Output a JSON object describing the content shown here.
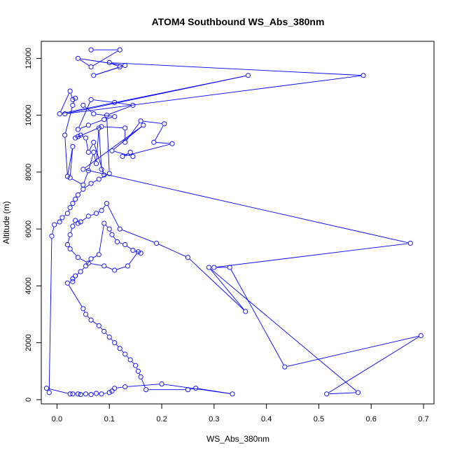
{
  "chart_data": {
    "type": "line",
    "title": "ATOM4 Southbound WS_Abs_380nm",
    "xlabel": "WS_Abs_380nm",
    "ylabel": "Altitude (m)",
    "xlim": [
      -0.03,
      0.72
    ],
    "ylim": [
      -150,
      12600
    ],
    "xticks": [
      "0.0",
      "0.1",
      "0.2",
      "0.3",
      "0.4",
      "0.5",
      "0.6",
      "0.7"
    ],
    "yticks": [
      "0",
      "2000",
      "4000",
      "6000",
      "8000",
      "10000",
      "12000"
    ],
    "xtick_values": [
      0,
      0.1,
      0.2,
      0.3,
      0.4,
      0.5,
      0.6,
      0.7
    ],
    "ytick_values": [
      0,
      2000,
      4000,
      6000,
      8000,
      10000,
      12000
    ],
    "grid": false,
    "legend": "none",
    "series": [
      {
        "color": "#0000ff",
        "marker": "open-circle",
        "x": [
          0.065,
          0.12,
          0.065,
          0.04,
          0.13,
          0.07,
          0.12,
          0.1,
          0.585,
          0.015,
          0.365,
          0.005,
          0.025,
          0.03,
          0.035,
          0.03,
          0.015,
          0.02,
          0.03,
          0.025,
          0.05,
          0.06,
          0.07,
          0.075,
          0.08,
          0.085,
          0.09,
          0.07,
          0.06,
          0.055,
          0.045,
          0.04,
          0.035,
          0.085,
          0.13,
          0.13,
          0.16,
          0.205,
          0.185,
          0.22,
          0.125,
          0.14,
          0.145,
          0.105,
          0.165,
          0.05,
          0.675,
          0.3,
          0.33,
          0.435,
          0.695,
          0.515,
          0.575,
          0.29,
          0.36,
          0.25,
          0.19,
          0.12,
          0.095,
          0.085,
          0.075,
          0.06,
          0.045,
          0.04,
          0.035,
          0.03,
          0.025,
          0.02,
          0.025,
          0.04,
          0.06,
          0.09,
          0.11,
          0.135,
          0.155,
          0.16,
          0.145,
          0.13,
          0.115,
          0.105,
          0.1,
          0.09,
          0.08,
          0.065,
          0.055,
          0.045,
          0.035,
          0.03,
          0.03,
          0.02,
          0.05,
          0.055,
          0.065,
          0.08,
          0.09,
          0.1,
          0.11,
          0.12,
          0.13,
          0.14,
          0.15,
          0.155,
          0.16,
          0.17,
          0.25,
          0.265,
          0.335,
          0.2,
          0.13,
          0.11,
          0.105,
          0.1,
          0.085,
          0.075,
          0.065,
          0.055,
          0.045,
          0.04,
          0.03,
          0.025,
          -0.02,
          -0.015,
          -0.01,
          -0.005,
          0.005,
          0.01,
          0.02,
          0.025,
          0.03,
          0.035,
          0.04,
          0.05,
          0.065,
          0.08,
          0.1,
          0.095,
          0.145,
          0.11,
          0.065,
          0.04,
          0.06,
          0.09,
          0.11,
          0.07,
          0.05
        ],
        "y": [
          12300,
          12300,
          11700,
          12000,
          11750,
          11400,
          11700,
          11850,
          11400,
          10050,
          11400,
          10050,
          10850,
          10550,
          10600,
          10350,
          9300,
          7850,
          8900,
          7800,
          7550,
          8050,
          8700,
          8300,
          9550,
          8100,
          7900,
          9050,
          8700,
          9200,
          9300,
          9250,
          9200,
          9600,
          9550,
          9050,
          9800,
          9700,
          9050,
          9000,
          8550,
          8700,
          8550,
          8750,
          9650,
          8100,
          5500,
          4650,
          4650,
          1150,
          2250,
          200,
          250,
          4650,
          3100,
          5000,
          5500,
          6000,
          6900,
          6650,
          6550,
          6450,
          6250,
          6200,
          6300,
          6100,
          5800,
          5450,
          5300,
          5000,
          4800,
          4700,
          4550,
          4700,
          5200,
          5150,
          5250,
          5450,
          5550,
          5800,
          6000,
          6200,
          5100,
          4950,
          4700,
          4500,
          4350,
          4250,
          4150,
          4100,
          3200,
          3000,
          2800,
          2600,
          2400,
          2200,
          2000,
          1800,
          1600,
          1400,
          1200,
          1000,
          800,
          350,
          350,
          400,
          200,
          550,
          450,
          400,
          300,
          250,
          200,
          220,
          180,
          200,
          180,
          200,
          200,
          200,
          400,
          250,
          5750,
          6150,
          6250,
          6400,
          6550,
          6750,
          6900,
          7050,
          7200,
          7400,
          7600,
          7750,
          7950,
          10000,
          10350,
          10450,
          10550,
          9500,
          9650,
          9850,
          9950,
          10050,
          10350
        ]
      }
    ]
  }
}
